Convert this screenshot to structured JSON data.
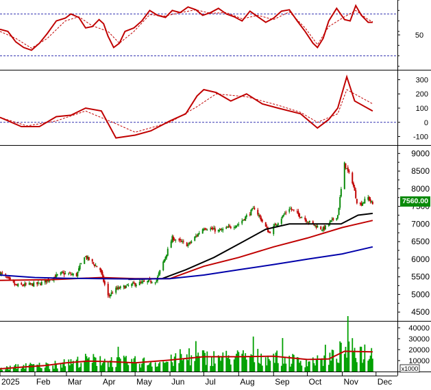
{
  "chart_data": [
    {
      "type": "line",
      "panel": "oscillator-1",
      "x_range": [
        "2025-01-01",
        "2025-12-20"
      ],
      "y_ticks": [
        50
      ],
      "levels": [
        80,
        20
      ],
      "series": [
        {
          "values": [
            [
              "2025-01-01",
              58
            ],
            [
              "2025-01-08",
              55
            ],
            [
              "2025-01-15",
              40
            ],
            [
              "2025-01-22",
              32
            ],
            [
              "2025-01-29",
              28
            ],
            [
              "2025-02-05",
              38
            ],
            [
              "2025-02-12",
              52
            ],
            [
              "2025-02-20",
              70
            ],
            [
              "2025-02-28",
              74
            ],
            [
              "2025-03-05",
              80
            ],
            [
              "2025-03-12",
              75
            ],
            [
              "2025-03-18",
              60
            ],
            [
              "2025-03-24",
              62
            ],
            [
              "2025-03-30",
              72
            ],
            [
              "2025-04-03",
              66
            ],
            [
              "2025-04-07",
              48
            ],
            [
              "2025-04-12",
              32
            ],
            [
              "2025-04-17",
              38
            ],
            [
              "2025-04-22",
              55
            ],
            [
              "2025-04-30",
              60
            ],
            [
              "2025-05-07",
              70
            ],
            [
              "2025-05-14",
              85
            ],
            [
              "2025-05-21",
              78
            ],
            [
              "2025-05-28",
              75
            ],
            [
              "2025-06-03",
              85
            ],
            [
              "2025-06-10",
              82
            ],
            [
              "2025-06-17",
              90
            ],
            [
              "2025-06-24",
              86
            ],
            [
              "2025-06-30",
              78
            ],
            [
              "2025-07-07",
              82
            ],
            [
              "2025-07-14",
              88
            ],
            [
              "2025-07-21",
              80
            ],
            [
              "2025-07-28",
              76
            ],
            [
              "2025-08-04",
              70
            ],
            [
              "2025-08-11",
              84
            ],
            [
              "2025-08-18",
              76
            ],
            [
              "2025-08-25",
              68
            ],
            [
              "2025-09-01",
              74
            ],
            [
              "2025-09-08",
              84
            ],
            [
              "2025-09-15",
              86
            ],
            [
              "2025-09-22",
              70
            ],
            [
              "2025-09-29",
              55
            ],
            [
              "2025-10-06",
              38
            ],
            [
              "2025-10-10",
              32
            ],
            [
              "2025-10-15",
              45
            ],
            [
              "2025-10-20",
              70
            ],
            [
              "2025-10-27",
              88
            ],
            [
              "2025-11-03",
              72
            ],
            [
              "2025-11-08",
              70
            ],
            [
              "2025-11-13",
              92
            ],
            [
              "2025-11-18",
              78
            ],
            [
              "2025-11-24",
              68
            ],
            [
              "2025-11-28",
              68
            ]
          ]
        },
        {
          "values": [
            [
              "2025-01-01",
              55
            ],
            [
              "2025-01-15",
              45
            ],
            [
              "2025-01-29",
              31
            ],
            [
              "2025-02-12",
              45
            ],
            [
              "2025-02-28",
              70
            ],
            [
              "2025-03-12",
              76
            ],
            [
              "2025-03-24",
              63
            ],
            [
              "2025-04-07",
              55
            ],
            [
              "2025-04-17",
              38
            ],
            [
              "2025-04-30",
              55
            ],
            [
              "2025-05-14",
              79
            ],
            [
              "2025-05-28",
              77
            ],
            [
              "2025-06-10",
              82
            ],
            [
              "2025-06-24",
              86
            ],
            [
              "2025-07-07",
              81
            ],
            [
              "2025-07-21",
              82
            ],
            [
              "2025-08-04",
              73
            ],
            [
              "2025-08-18",
              78
            ],
            [
              "2025-09-01",
              72
            ],
            [
              "2025-09-15",
              83
            ],
            [
              "2025-09-29",
              60
            ],
            [
              "2025-10-10",
              36
            ],
            [
              "2025-10-20",
              62
            ],
            [
              "2025-11-03",
              76
            ],
            [
              "2025-11-13",
              85
            ],
            [
              "2025-11-24",
              72
            ],
            [
              "2025-11-28",
              69
            ]
          ]
        }
      ],
      "colors": {
        "line": "#c00000",
        "guide": "#3030b0"
      }
    },
    {
      "type": "line",
      "panel": "oscillator-2",
      "x_range": [
        "2025-01-01",
        "2025-12-20"
      ],
      "ylim": [
        -160,
        360
      ],
      "y_ticks": [
        300,
        200,
        100,
        0,
        -100
      ],
      "levels": [
        0
      ],
      "series": [
        {
          "values": [
            [
              "2025-01-01",
              35
            ],
            [
              "2025-01-20",
              -30
            ],
            [
              "2025-02-05",
              -30
            ],
            [
              "2025-02-20",
              40
            ],
            [
              "2025-03-05",
              50
            ],
            [
              "2025-03-18",
              100
            ],
            [
              "2025-04-01",
              80
            ],
            [
              "2025-04-14",
              -110
            ],
            [
              "2025-05-01",
              -90
            ],
            [
              "2025-05-15",
              -60
            ],
            [
              "2025-06-01",
              10
            ],
            [
              "2025-06-15",
              60
            ],
            [
              "2025-06-25",
              185
            ],
            [
              "2025-07-01",
              230
            ],
            [
              "2025-07-12",
              210
            ],
            [
              "2025-07-25",
              150
            ],
            [
              "2025-08-08",
              200
            ],
            [
              "2025-08-22",
              130
            ],
            [
              "2025-09-05",
              100
            ],
            [
              "2025-09-25",
              60
            ],
            [
              "2025-10-10",
              -40
            ],
            [
              "2025-10-20",
              20
            ],
            [
              "2025-10-28",
              100
            ],
            [
              "2025-11-05",
              320
            ],
            [
              "2025-11-12",
              150
            ],
            [
              "2025-11-28",
              80
            ]
          ]
        },
        {
          "values": [
            [
              "2025-01-01",
              35
            ],
            [
              "2025-01-25",
              -25
            ],
            [
              "2025-02-20",
              10
            ],
            [
              "2025-03-18",
              80
            ],
            [
              "2025-04-14",
              -10
            ],
            [
              "2025-05-01",
              -70
            ],
            [
              "2025-06-01",
              0
            ],
            [
              "2025-06-25",
              110
            ],
            [
              "2025-07-12",
              200
            ],
            [
              "2025-08-08",
              180
            ],
            [
              "2025-09-05",
              120
            ],
            [
              "2025-09-25",
              70
            ],
            [
              "2025-10-10",
              0
            ],
            [
              "2025-10-28",
              60
            ],
            [
              "2025-11-05",
              230
            ],
            [
              "2025-11-28",
              130
            ]
          ]
        }
      ],
      "colors": {
        "line": "#c00000",
        "guide": "#3030b0"
      }
    },
    {
      "type": "candlestick",
      "panel": "price",
      "x_range": [
        "2025-01-01",
        "2025-12-20"
      ],
      "ylim": [
        4250,
        9200
      ],
      "y_ticks": [
        9000,
        8500,
        8000,
        7500,
        7000,
        6500,
        6000,
        5500,
        5000,
        4500
      ],
      "last_price_label": "7560.00",
      "close_path": [
        [
          "2025-01-01",
          5620
        ],
        [
          "2025-01-15",
          5250
        ],
        [
          "2025-02-05",
          5300
        ],
        [
          "2025-02-25",
          5600
        ],
        [
          "2025-03-10",
          5550
        ],
        [
          "2025-03-17",
          6100
        ],
        [
          "2025-03-31",
          5700
        ],
        [
          "2025-04-07",
          4950
        ],
        [
          "2025-04-14",
          5150
        ],
        [
          "2025-05-01",
          5300
        ],
        [
          "2025-05-20",
          5400
        ],
        [
          "2025-06-03",
          6600
        ],
        [
          "2025-06-17",
          6400
        ],
        [
          "2025-07-01",
          6900
        ],
        [
          "2025-07-15",
          6800
        ],
        [
          "2025-08-01",
          7000
        ],
        [
          "2025-08-15",
          7450
        ],
        [
          "2025-08-28",
          6750
        ],
        [
          "2025-09-15",
          7450
        ],
        [
          "2025-10-05",
          7000
        ],
        [
          "2025-10-15",
          6850
        ],
        [
          "2025-10-28",
          7250
        ],
        [
          "2025-11-03",
          8700
        ],
        [
          "2025-11-10",
          8200
        ],
        [
          "2025-11-15",
          7500
        ],
        [
          "2025-11-24",
          7750
        ],
        [
          "2025-11-28",
          7560
        ]
      ],
      "series": [
        {
          "name": "",
          "color": "#000000",
          "values": [
            [
              "2025-04-25",
              5430
            ],
            [
              "2025-05-25",
              5450
            ],
            [
              "2025-06-15",
              5700
            ],
            [
              "2025-07-10",
              6050
            ],
            [
              "2025-08-05",
              6500
            ],
            [
              "2025-08-25",
              6850
            ],
            [
              "2025-09-15",
              7000
            ],
            [
              "2025-10-10",
              7000
            ],
            [
              "2025-10-31",
              7000
            ],
            [
              "2025-11-15",
              7250
            ],
            [
              "2025-11-28",
              7300
            ]
          ]
        },
        {
          "name": "",
          "color": "#c00000",
          "values": [
            [
              "2025-01-01",
              5400
            ],
            [
              "2025-02-15",
              5420
            ],
            [
              "2025-04-01",
              5480
            ],
            [
              "2025-05-01",
              5450
            ],
            [
              "2025-06-01",
              5450
            ],
            [
              "2025-07-01",
              5800
            ],
            [
              "2025-08-01",
              6050
            ],
            [
              "2025-09-01",
              6350
            ],
            [
              "2025-10-01",
              6600
            ],
            [
              "2025-11-01",
              6900
            ],
            [
              "2025-11-28",
              7100
            ]
          ]
        },
        {
          "name": "",
          "color": "#0000aa",
          "values": [
            [
              "2025-01-01",
              5550
            ],
            [
              "2025-02-01",
              5480
            ],
            [
              "2025-03-01",
              5460
            ],
            [
              "2025-04-01",
              5450
            ],
            [
              "2025-05-01",
              5440
            ],
            [
              "2025-06-01",
              5450
            ],
            [
              "2025-07-01",
              5550
            ],
            [
              "2025-08-01",
              5700
            ],
            [
              "2025-09-01",
              5850
            ],
            [
              "2025-10-01",
              6000
            ],
            [
              "2025-11-01",
              6150
            ],
            [
              "2025-11-28",
              6350
            ]
          ]
        }
      ],
      "colors": {
        "up": "#0a8a0a",
        "down": "#c00000"
      }
    },
    {
      "type": "bar",
      "panel": "volume",
      "x_range": [
        "2025-01-01",
        "2025-12-20"
      ],
      "ylim": [
        0,
        45000
      ],
      "y_ticks": [
        40000,
        30000,
        20000,
        10000
      ],
      "unit_label": "x1000",
      "level_path": [
        [
          "2025-01-01",
          2500
        ],
        [
          "2025-01-20",
          5500
        ],
        [
          "2025-02-10",
          6000
        ],
        [
          "2025-03-01",
          8000
        ],
        [
          "2025-03-20",
          11500
        ],
        [
          "2025-04-10",
          10000
        ],
        [
          "2025-05-01",
          9500
        ],
        [
          "2025-05-25",
          9000
        ],
        [
          "2025-06-15",
          13000
        ],
        [
          "2025-07-01",
          14000
        ],
        [
          "2025-07-20",
          13500
        ],
        [
          "2025-08-10",
          14500
        ],
        [
          "2025-09-01",
          14000
        ],
        [
          "2025-09-20",
          11000
        ],
        [
          "2025-10-10",
          10000
        ],
        [
          "2025-10-25",
          14500
        ],
        [
          "2025-11-03",
          22000
        ],
        [
          "2025-11-28",
          18000
        ]
      ],
      "series": [
        {
          "name": "",
          "color": "#c00000",
          "values": [
            [
              "2025-01-01",
              2500
            ],
            [
              "2025-01-20",
              4000
            ],
            [
              "2025-02-10",
              5500
            ],
            [
              "2025-03-01",
              8000
            ],
            [
              "2025-03-20",
              9500
            ],
            [
              "2025-04-10",
              9000
            ],
            [
              "2025-05-01",
              8000
            ],
            [
              "2025-06-01",
              10500
            ],
            [
              "2025-07-01",
              13500
            ],
            [
              "2025-08-01",
              13500
            ],
            [
              "2025-09-01",
              14000
            ],
            [
              "2025-10-01",
              11000
            ],
            [
              "2025-10-20",
              11500
            ],
            [
              "2025-11-03",
              18500
            ],
            [
              "2025-11-28",
              18000
            ]
          ]
        }
      ],
      "colors": {
        "bar": "#00a000"
      }
    }
  ],
  "x_axis": {
    "labels": [
      "2025",
      "Feb",
      "Mar",
      "Apr",
      "May",
      "Jun",
      "Jul",
      "Aug",
      "Sep",
      "Oct",
      "Nov",
      "Dec"
    ],
    "months": [
      "2025-01-01",
      "2025-02-01",
      "2025-03-01",
      "2025-04-01",
      "2025-05-01",
      "2025-06-01",
      "2025-07-01",
      "2025-08-01",
      "2025-09-01",
      "2025-10-01",
      "2025-11-01",
      "2025-12-01"
    ]
  }
}
